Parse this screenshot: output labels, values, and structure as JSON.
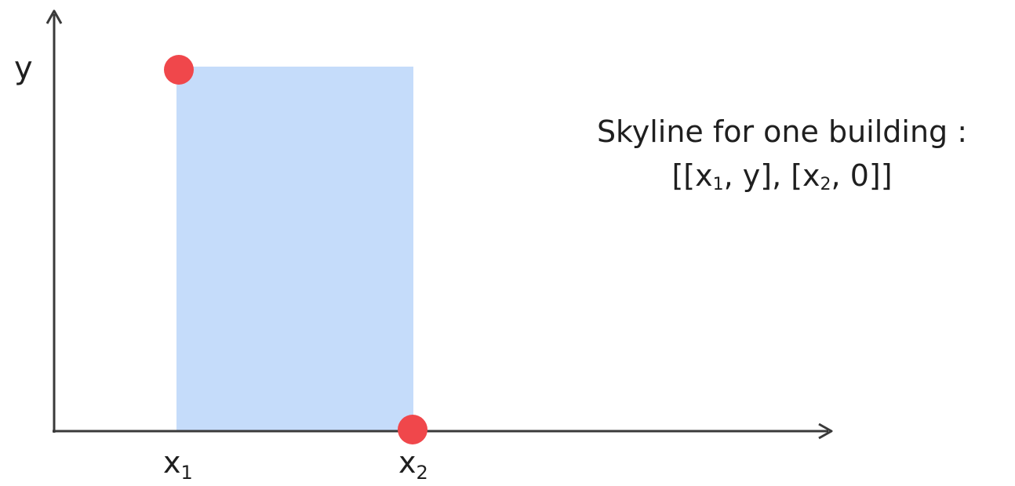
{
  "axes": {
    "y_label": "y",
    "x1_base": "x",
    "x1_sub": "1",
    "x2_base": "x",
    "x2_sub": "2"
  },
  "caption": {
    "line1": "Skyline for one building :",
    "line2_open": "[[x",
    "line2_sub1": "1",
    "line2_mid": ", y], [x",
    "line2_sub2": "2",
    "line2_close": ", 0]]"
  },
  "colors": {
    "building_fill": "#c5dcfa",
    "point_fill": "#f0474b",
    "axis_stroke": "#3a3a3a"
  }
}
